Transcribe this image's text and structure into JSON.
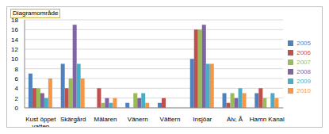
{
  "chart_data": {
    "type": "bar",
    "annotations": [
      "Diagramområde"
    ],
    "categories": [
      "Kust öppet vatten",
      "Skärgård",
      "Mälaren",
      "Vänern",
      "Vättern",
      "Insjöar",
      "Älv, Å",
      "Hamn Kanal"
    ],
    "series": [
      {
        "name": "2005",
        "color": "#4f81bd",
        "values": [
          7,
          9,
          0,
          1,
          1,
          10,
          3,
          3
        ]
      },
      {
        "name": "2006",
        "color": "#c0504d",
        "values": [
          4,
          4,
          4,
          0,
          2,
          16,
          1,
          4
        ]
      },
      {
        "name": "2007",
        "color": "#9bbb59",
        "values": [
          4,
          6,
          1,
          3,
          0,
          16,
          3,
          2
        ]
      },
      {
        "name": "2008",
        "color": "#8064a2",
        "values": [
          3,
          17,
          2,
          2,
          0,
          17,
          2,
          0
        ]
      },
      {
        "name": "2009",
        "color": "#4bacc6",
        "values": [
          2,
          9,
          1,
          3,
          0,
          9,
          4,
          3
        ]
      },
      {
        "name": "2010",
        "color": "#f79646",
        "values": [
          6,
          6,
          2,
          1,
          0,
          9,
          3,
          2
        ]
      }
    ],
    "ylim": [
      0,
      18
    ],
    "yticks": [
      0,
      2,
      4,
      6,
      8,
      10,
      12,
      14,
      16,
      18
    ],
    "grid": true,
    "legend": "right"
  }
}
